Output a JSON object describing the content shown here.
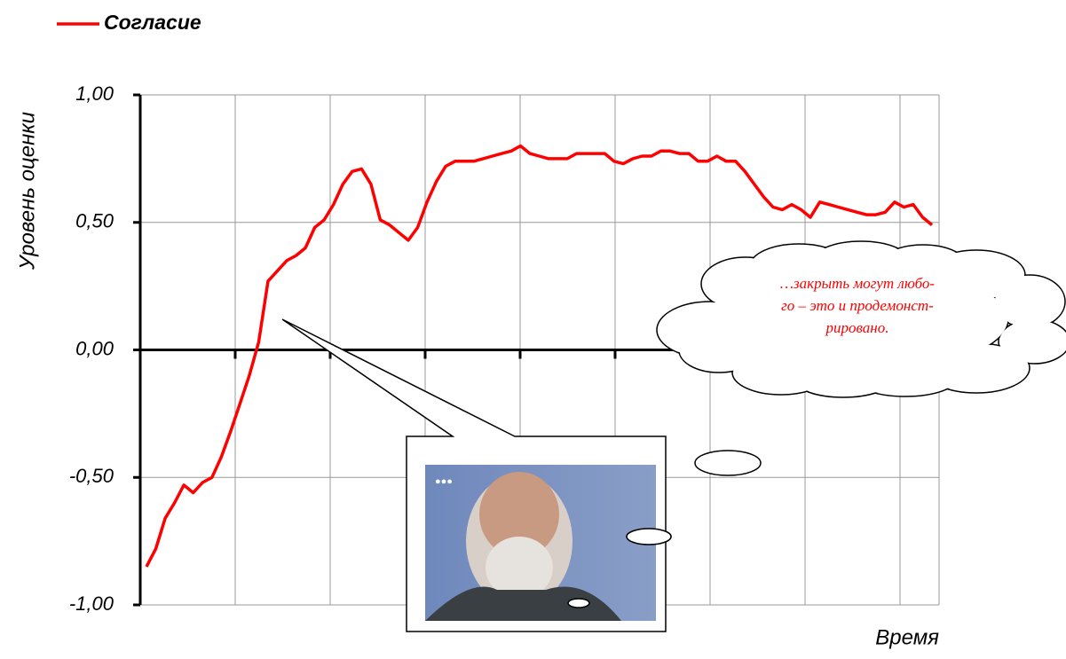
{
  "chart_data": {
    "type": "line",
    "y_axis_label": "Уровень оценки",
    "x_axis_label": "Время",
    "series": [
      {
        "name": "Согласие",
        "color": "#ff0000",
        "values": [
          -0.85,
          -0.78,
          -0.66,
          -0.6,
          -0.53,
          -0.56,
          -0.52,
          -0.5,
          -0.42,
          -0.32,
          -0.21,
          -0.1,
          0.03,
          0.27,
          0.31,
          0.35,
          0.37,
          0.4,
          0.48,
          0.51,
          0.57,
          0.65,
          0.7,
          0.71,
          0.65,
          0.51,
          0.49,
          0.46,
          0.43,
          0.48,
          0.58,
          0.66,
          0.72,
          0.74,
          0.74,
          0.74,
          0.75,
          0.76,
          0.77,
          0.78,
          0.8,
          0.77,
          0.76,
          0.75,
          0.75,
          0.75,
          0.77,
          0.77,
          0.77,
          0.77,
          0.74,
          0.73,
          0.75,
          0.76,
          0.76,
          0.78,
          0.78,
          0.77,
          0.77,
          0.74,
          0.74,
          0.76,
          0.74,
          0.74,
          0.7,
          0.65,
          0.6,
          0.56,
          0.55,
          0.57,
          0.55,
          0.52,
          0.58,
          0.57,
          0.56,
          0.55,
          0.54,
          0.53,
          0.53,
          0.54,
          0.58,
          0.56,
          0.57,
          0.52,
          0.49
        ]
      }
    ],
    "ylim": [
      -1,
      1
    ],
    "yticks": [
      {
        "value": 1,
        "label": "1,00"
      },
      {
        "value": 0.5,
        "label": "0,50"
      },
      {
        "value": 0,
        "label": "0,00"
      },
      {
        "value": -0.5,
        "label": "-0,50"
      },
      {
        "value": -1,
        "label": "-1,00"
      }
    ],
    "grid": true,
    "annotation": [
      "…закрыть могут любо-",
      "го – это и продемонст-",
      "рировано."
    ]
  }
}
